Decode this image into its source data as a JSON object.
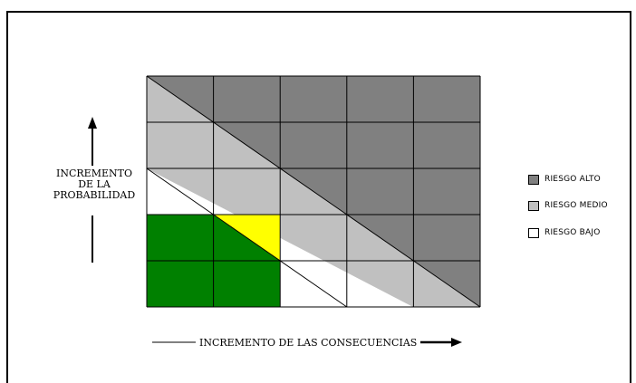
{
  "axes": {
    "y_label_lines": [
      "INCREMENTO",
      "DE LA",
      "PROBABILIDAD"
    ],
    "x_label": "INCREMENTO DE LAS CONSECUENCIAS"
  },
  "legend": [
    {
      "label": "RIESGO ALTO",
      "color": "#808080"
    },
    {
      "label": "RIESGO MEDIO",
      "color": "#c0c0c0"
    },
    {
      "label": "RIESGO BAJO",
      "color": "#ffffff"
    }
  ],
  "matrix": {
    "rows": 5,
    "cols": 5,
    "colors": {
      "alto": "#808080",
      "medio": "#c0c0c0",
      "bajo": "#ffffff",
      "green": "#008000",
      "yellow": "#ffff00"
    }
  }
}
